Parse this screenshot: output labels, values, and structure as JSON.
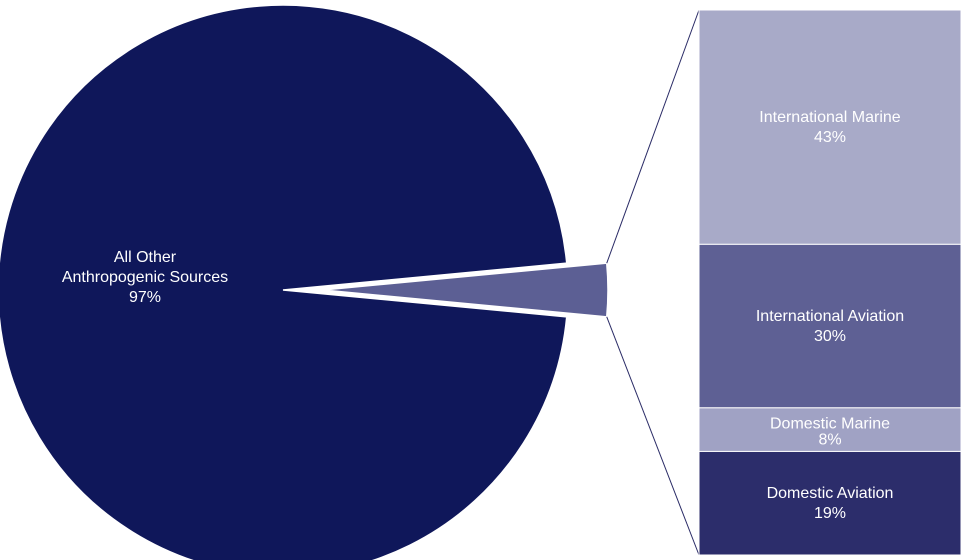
{
  "chart_data": {
    "type": "pie",
    "subtype": "bar-of-pie",
    "pie": {
      "slices": [
        {
          "label_lines": [
            "All Other",
            "Anthropogenic Sources"
          ],
          "value_label": "97%",
          "value": 97,
          "color": "#0f175a"
        },
        {
          "label_lines": [],
          "value_label": "",
          "value": 3,
          "color": "#5c5f94"
        }
      ]
    },
    "breakdown": {
      "segments": [
        {
          "label": "International Marine",
          "value_label": "43%",
          "value": 43,
          "color": "#a8aac8"
        },
        {
          "label": "International Aviation",
          "value_label": "30%",
          "value": 30,
          "color": "#5e6094"
        },
        {
          "label": "Domestic Marine",
          "value_label": "8%",
          "value": 8,
          "color": "#a0a2c4"
        },
        {
          "label": "Domestic Aviation",
          "value_label": "19%",
          "value": 19,
          "color": "#2c2d6b"
        }
      ]
    }
  }
}
